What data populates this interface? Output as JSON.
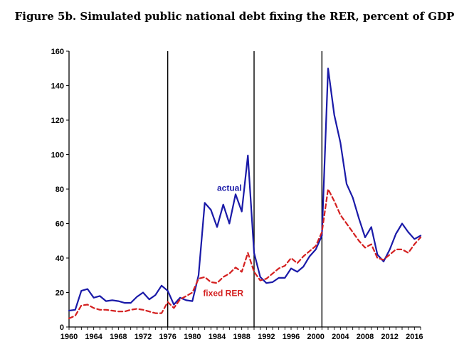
{
  "chart_data": {
    "type": "line",
    "title": "Figure 5b. Simulated public national debt fixing the RER, percent of GDP",
    "xlabel": "",
    "ylabel": "",
    "xlim": [
      1960,
      2017
    ],
    "ylim": [
      0,
      160
    ],
    "y_ticks": [
      0,
      20,
      40,
      60,
      80,
      100,
      120,
      140,
      160
    ],
    "x_ticks": [
      1960,
      1964,
      1968,
      1972,
      1976,
      1980,
      1984,
      1988,
      1992,
      1996,
      2000,
      2004,
      2008,
      2012,
      2016
    ],
    "vertical_markers": [
      1976,
      1990,
      2001
    ],
    "grid": false,
    "series": [
      {
        "name": "actual",
        "color": "#1a1aa8",
        "dash": "solid",
        "x": [
          1960,
          1961,
          1962,
          1963,
          1964,
          1965,
          1966,
          1967,
          1968,
          1969,
          1970,
          1971,
          1972,
          1973,
          1974,
          1975,
          1976,
          1977,
          1978,
          1979,
          1980,
          1981,
          1982,
          1983,
          1984,
          1985,
          1986,
          1987,
          1988,
          1989,
          1990,
          1991,
          1992,
          1993,
          1994,
          1995,
          1996,
          1997,
          1998,
          1999,
          2000,
          2001,
          2002,
          2003,
          2004,
          2005,
          2006,
          2007,
          2008,
          2009,
          2010,
          2011,
          2012,
          2013,
          2014,
          2015,
          2016,
          2017
        ],
        "values": [
          9.5,
          10,
          21,
          22,
          17,
          18,
          15,
          15.5,
          15,
          14,
          14,
          17.5,
          20,
          16,
          18.5,
          24,
          21,
          13,
          17,
          15.5,
          15,
          30,
          72,
          68,
          58,
          71,
          60,
          77,
          67,
          99.5,
          43,
          29,
          25.5,
          26,
          28.5,
          28.5,
          34,
          32,
          35,
          41,
          45,
          53,
          150,
          123,
          107,
          83,
          75,
          63,
          52,
          58,
          42,
          38,
          45,
          54,
          60,
          55,
          51,
          53
        ]
      },
      {
        "name": "fixed RER",
        "color": "#d42020",
        "dash": "dashed",
        "x": [
          1960,
          1961,
          1962,
          1963,
          1964,
          1965,
          1966,
          1967,
          1968,
          1969,
          1970,
          1971,
          1972,
          1973,
          1974,
          1975,
          1976,
          1977,
          1978,
          1979,
          1980,
          1981,
          1982,
          1983,
          1984,
          1985,
          1986,
          1987,
          1988,
          1989,
          1990,
          1991,
          1992,
          1993,
          1994,
          1995,
          1996,
          1997,
          1998,
          1999,
          2000,
          2001,
          2002,
          2003,
          2004,
          2005,
          2006,
          2007,
          2008,
          2009,
          2010,
          2011,
          2012,
          2013,
          2014,
          2015,
          2016,
          2017
        ],
        "values": [
          5,
          6.5,
          12.5,
          13,
          11,
          10,
          10,
          9.5,
          9,
          9,
          10,
          10.5,
          10,
          9,
          8,
          8,
          14.5,
          11,
          16,
          18,
          20,
          28,
          29,
          26,
          25.5,
          29,
          31,
          34.5,
          32,
          43,
          32,
          27,
          28,
          31,
          34,
          35.5,
          40,
          37,
          41,
          44,
          47,
          55,
          80,
          73,
          65,
          60,
          55,
          50,
          46,
          48,
          40,
          39,
          42,
          45,
          45,
          43,
          48,
          52
        ]
      }
    ],
    "annotations": [
      {
        "text": "actual",
        "near_x": 1986,
        "near_y": 79,
        "color": "#1a1aa8"
      },
      {
        "text": "fixed RER",
        "near_x": 1985,
        "near_y": 18,
        "color": "#d42020"
      }
    ]
  }
}
